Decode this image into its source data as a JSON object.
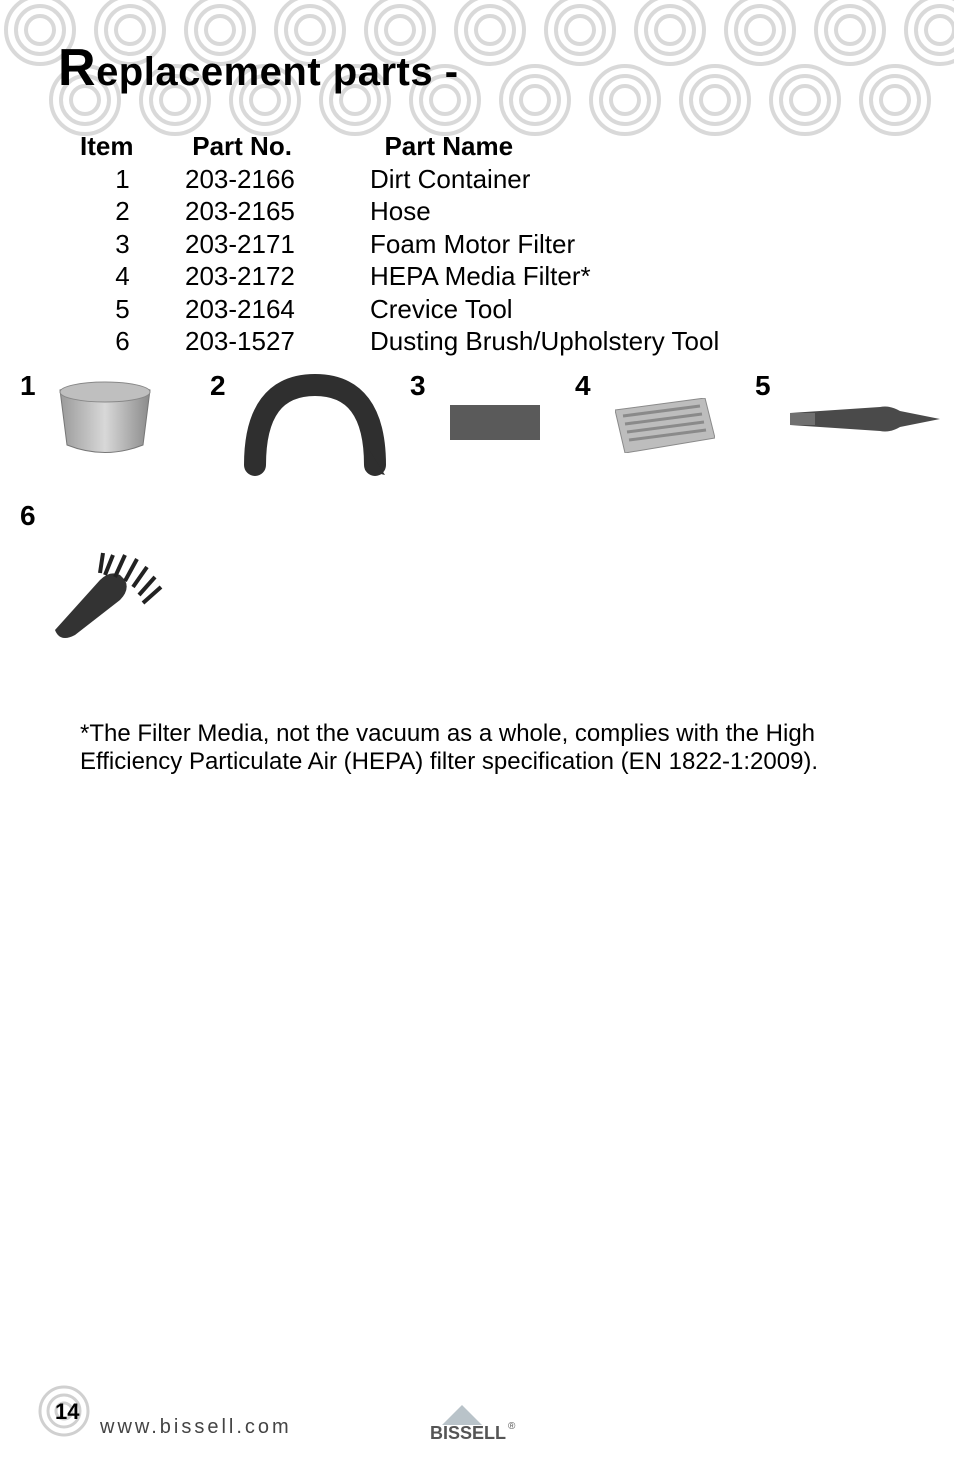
{
  "title_prefix": "R",
  "title_rest": "eplacement parts -",
  "table": {
    "headers": {
      "item": "Item",
      "pn": "Part No.",
      "name": "Part Name"
    },
    "rows": [
      {
        "item": "1",
        "pn": "203-2166",
        "name": "Dirt Container"
      },
      {
        "item": "2",
        "pn": "203-2165",
        "name": "Hose"
      },
      {
        "item": "3",
        "pn": "203-2171",
        "name": "Foam Motor Filter"
      },
      {
        "item": "4",
        "pn": "203-2172",
        "name": "HEPA Media Filter*"
      },
      {
        "item": "5",
        "pn": "203-2164",
        "name": "Crevice Tool"
      },
      {
        "item": "6",
        "pn": "203-1527",
        "name": "Dusting Brush/Upholstery Tool"
      }
    ]
  },
  "thumbs": [
    {
      "n": "1",
      "label": "dirt-container"
    },
    {
      "n": "2",
      "label": "hose"
    },
    {
      "n": "3",
      "label": "foam-filter"
    },
    {
      "n": "4",
      "label": "hepa-filter"
    },
    {
      "n": "5",
      "label": "crevice-tool"
    },
    {
      "n": "6",
      "label": "dusting-brush"
    }
  ],
  "footnote": "*The Filter Media, not the vacuum as a whole, complies with the High Efficiency Particulate Air (HEPA) filter specification (EN 1822-1:2009).",
  "page_number": "14",
  "url": "www.bissell.com",
  "logo_text": "BISSELL",
  "colors": {
    "swirl": "#d9d9d9",
    "part_gray": "#6e6e6e",
    "part_dark": "#3a3a3a",
    "logo_tri": "#b9c3c9"
  }
}
